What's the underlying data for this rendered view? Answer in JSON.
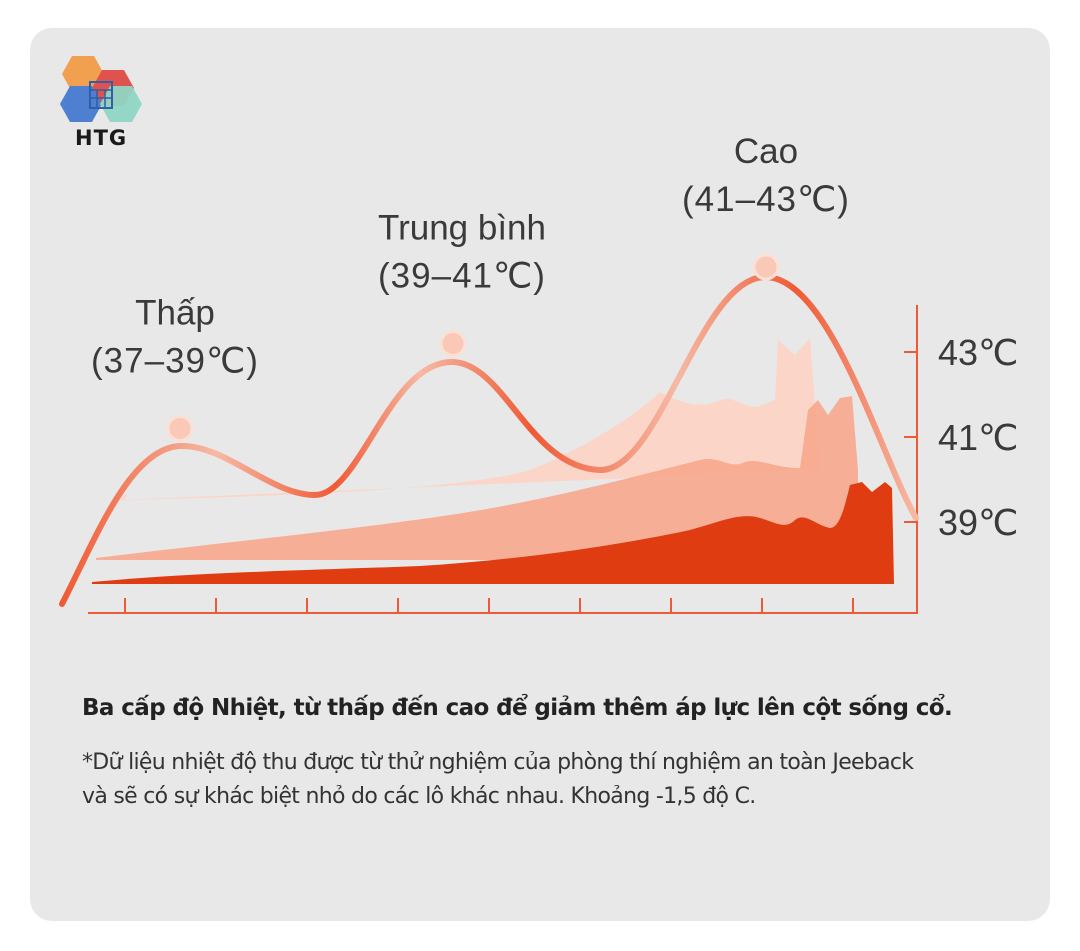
{
  "logo": {
    "text": "HTG"
  },
  "chart_data": {
    "type": "line",
    "title": "",
    "xlabel": "",
    "ylabel": "",
    "y_unit": "℃",
    "y_ticks": [
      "43℃",
      "41℃",
      "39℃"
    ],
    "y_tick_values": [
      43,
      41,
      39
    ],
    "ylim": [
      37,
      45
    ],
    "levels": [
      {
        "name": "Thấp",
        "range": "(37–39℃)",
        "peak": 41.2
      },
      {
        "name": "Trung bình",
        "range": "(39–41℃)",
        "peak": 43.2
      },
      {
        "name": "Cao",
        "range": "(41–43℃)",
        "peak": 45.0
      }
    ],
    "x_tick_count": 9,
    "grid": false,
    "legend": "none",
    "colors": {
      "curve_light": "#f6b9a4",
      "curve_dark": "#ef5a35",
      "marker": "#f9c8b6",
      "area_light": "#fbd6c8",
      "area_mid": "#f7a98d",
      "area_dark": "#e03c12",
      "axis": "#ec5b38"
    }
  },
  "caption": "Ba cấp độ Nhiệt, từ thấp đến cao để giảm thêm áp lực lên cột sống cổ.",
  "note_lines": [
    "*Dữ liệu nhiệt độ thu được từ thử nghiệm của phòng thí nghiệm an toàn Jeeback",
    "và sẽ có sự khác biệt nhỏ do các lô khác nhau. Khoảng -1,5 độ C."
  ]
}
